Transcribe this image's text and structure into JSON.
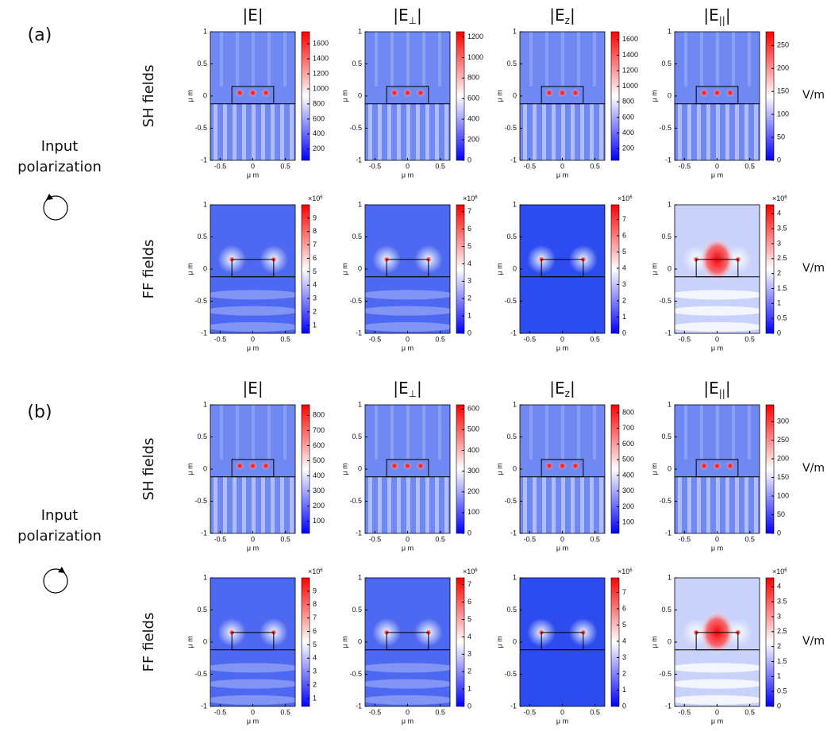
{
  "figure": {
    "columns": [
      {
        "text": "|E|"
      },
      {
        "open": "|E",
        "sub": "⊥",
        "close": "|"
      },
      {
        "open": "|E",
        "sub": "z",
        "close": "|"
      },
      {
        "open": "|E",
        "sub": "||",
        "close": "|"
      }
    ],
    "row_labels": [
      "SH fields",
      "FF fields"
    ],
    "unit": "V/m",
    "axis_label": "μ m",
    "xlim": [
      -0.65,
      0.65
    ],
    "xticks": [
      -0.5,
      0,
      0.5
    ],
    "ylim": [
      -1,
      1
    ],
    "yticks": [
      -1,
      -0.5,
      0,
      0.5,
      1
    ],
    "scale_label": {
      "base": "×10",
      "exp": "6"
    },
    "parts": [
      {
        "label": "(a)",
        "input_label": [
          "Input",
          "polarization"
        ],
        "rows": [
          [
            {
              "clim": [
                50,
                1760
              ],
              "cticks": [
                200,
                400,
                600,
                800,
                1000,
                1200,
                1400,
                1600
              ]
            },
            {
              "clim": [
                0,
                1250
              ],
              "cticks": [
                0,
                200,
                400,
                600,
                800,
                1000,
                1200
              ]
            },
            {
              "clim": [
                50,
                1700
              ],
              "cticks": [
                200,
                400,
                600,
                800,
                1000,
                1200,
                1400,
                1600
              ]
            },
            {
              "clim": [
                0,
                280
              ],
              "cticks": [
                0,
                50,
                100,
                150,
                200,
                250
              ]
            }
          ],
          [
            {
              "clim": [
                0.4,
                10
              ],
              "cticks": [
                1,
                2,
                3,
                4,
                5,
                6,
                7,
                8,
                9
              ],
              "scaled": true
            },
            {
              "clim": [
                0,
                7.4
              ],
              "cticks": [
                0,
                1,
                2,
                3,
                4,
                5,
                6,
                7
              ],
              "scaled": true
            },
            {
              "clim": [
                0,
                7.9
              ],
              "cticks": [
                0,
                1,
                2,
                3,
                4,
                5,
                6,
                7
              ],
              "scaled": true
            },
            {
              "clim": [
                0,
                4.3
              ],
              "cticks": [
                0,
                0.5,
                1,
                1.5,
                2,
                2.5,
                3,
                3.5,
                4
              ],
              "scaled": true
            }
          ]
        ]
      },
      {
        "label": "(b)",
        "input_label": [
          "Input",
          "polarization"
        ],
        "rows": [
          [
            {
              "clim": [
                20,
                870
              ],
              "cticks": [
                100,
                200,
                300,
                400,
                500,
                600,
                700,
                800
              ]
            },
            {
              "clim": [
                0,
                620
              ],
              "cticks": [
                0,
                100,
                200,
                300,
                400,
                500,
                600
              ]
            },
            {
              "clim": [
                30,
                850
              ],
              "cticks": [
                100,
                200,
                300,
                400,
                500,
                600,
                700,
                800
              ]
            },
            {
              "clim": [
                0,
                345
              ],
              "cticks": [
                0,
                50,
                100,
                150,
                200,
                250,
                300
              ]
            }
          ],
          [
            {
              "clim": [
                0.4,
                10
              ],
              "cticks": [
                1,
                2,
                3,
                4,
                5,
                6,
                7,
                8,
                9
              ],
              "scaled": true
            },
            {
              "clim": [
                0,
                7.4
              ],
              "cticks": [
                0,
                1,
                2,
                3,
                4,
                5,
                6,
                7
              ],
              "scaled": true
            },
            {
              "clim": [
                0,
                7.9
              ],
              "cticks": [
                0,
                1,
                2,
                3,
                4,
                5,
                6,
                7
              ],
              "scaled": true
            },
            {
              "clim": [
                0,
                4.3
              ],
              "cticks": [
                0,
                0.5,
                1,
                1.5,
                2,
                2.5,
                3,
                3.5,
                4
              ],
              "scaled": true
            }
          ]
        ]
      }
    ]
  }
}
